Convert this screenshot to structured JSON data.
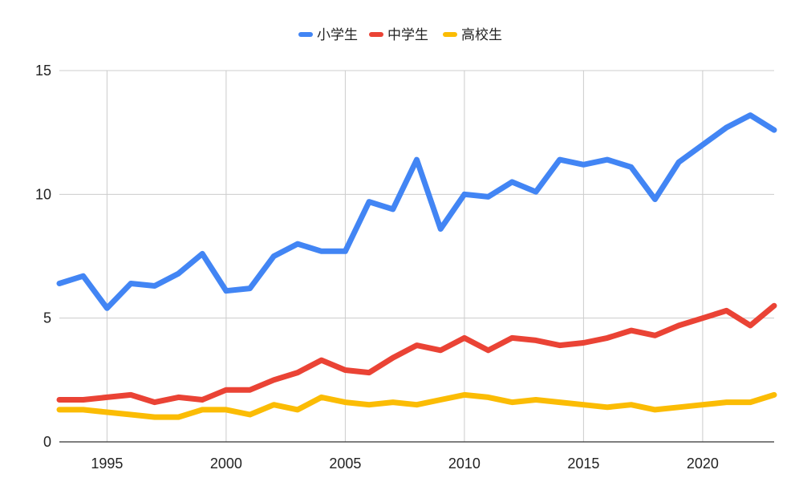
{
  "chart_data": {
    "type": "line",
    "title": "",
    "xlabel": "",
    "ylabel": "",
    "x": [
      1993,
      1994,
      1995,
      1996,
      1997,
      1998,
      1999,
      2000,
      2001,
      2002,
      2003,
      2004,
      2005,
      2006,
      2007,
      2008,
      2009,
      2010,
      2011,
      2012,
      2013,
      2014,
      2015,
      2016,
      2017,
      2018,
      2019,
      2020,
      2021,
      2022,
      2023
    ],
    "xlim": [
      1993,
      2023
    ],
    "ylim": [
      0,
      15
    ],
    "x_ticks": [
      "1995",
      "2000",
      "2005",
      "2010",
      "2015",
      "2020"
    ],
    "y_ticks": [
      "0",
      "5",
      "10",
      "15"
    ],
    "grid": true,
    "legend_position": "top-center",
    "series": [
      {
        "name": "小学生",
        "color": "#4285F4",
        "values": [
          6.4,
          6.7,
          5.4,
          6.4,
          6.3,
          6.8,
          7.6,
          6.1,
          6.2,
          7.5,
          8.0,
          7.7,
          7.7,
          9.7,
          9.4,
          11.4,
          8.6,
          10.0,
          9.9,
          10.5,
          10.1,
          11.4,
          11.2,
          11.4,
          11.1,
          9.8,
          11.3,
          12.0,
          12.7,
          13.2,
          12.6
        ]
      },
      {
        "name": "中学生",
        "color": "#EA4335",
        "values": [
          1.7,
          1.7,
          1.8,
          1.9,
          1.6,
          1.8,
          1.7,
          2.1,
          2.1,
          2.5,
          2.8,
          3.3,
          2.9,
          2.8,
          3.4,
          3.9,
          3.7,
          4.2,
          3.7,
          4.2,
          4.1,
          3.9,
          4.0,
          4.2,
          4.5,
          4.3,
          4.7,
          5.0,
          5.3,
          4.7,
          5.5
        ]
      },
      {
        "name": "高校生",
        "color": "#FBBC04",
        "values": [
          1.3,
          1.3,
          1.2,
          1.1,
          1.0,
          1.0,
          1.3,
          1.3,
          1.1,
          1.5,
          1.3,
          1.8,
          1.6,
          1.5,
          1.6,
          1.5,
          1.7,
          1.9,
          1.8,
          1.6,
          1.7,
          1.6,
          1.5,
          1.4,
          1.5,
          1.3,
          1.4,
          1.5,
          1.6,
          1.6,
          1.9
        ]
      }
    ]
  }
}
